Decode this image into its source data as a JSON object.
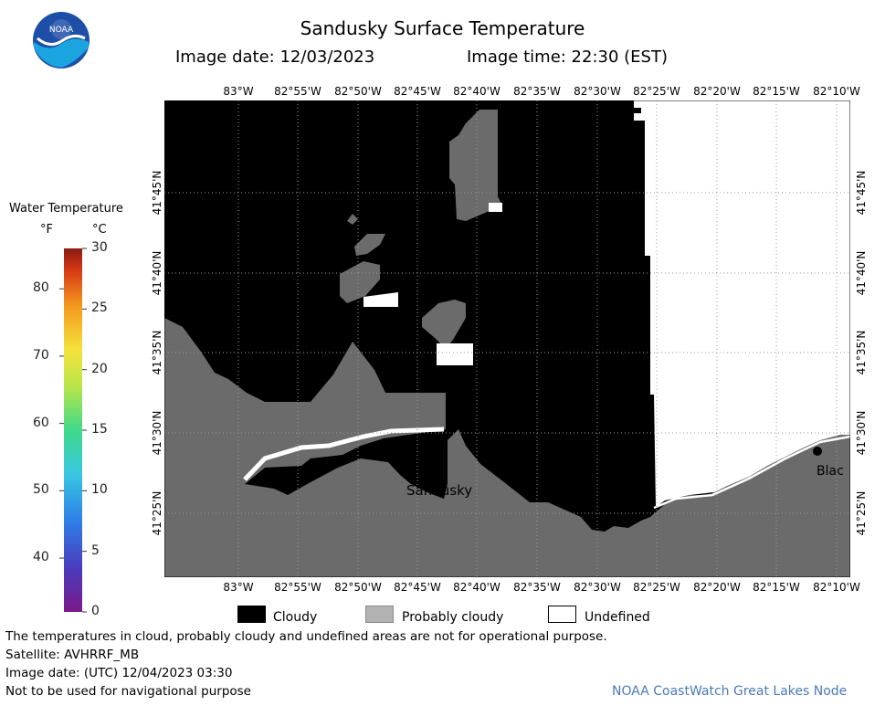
{
  "title": "Sandusky Surface Temperature",
  "image_date_label": "Image date: 12/03/2023",
  "image_time_label": "Image time: 22:30 (EST)",
  "logo_text": "NOAA",
  "colorbar": {
    "title": "Water Temperature",
    "unit_f": "°F",
    "unit_c": "°C",
    "f_ticks": [
      "80",
      "70",
      "60",
      "50",
      "40"
    ],
    "c_ticks": [
      "30",
      "25",
      "20",
      "15",
      "10",
      "5",
      "0"
    ]
  },
  "axes": {
    "lon_ticks": [
      "83°W",
      "82°55'W",
      "82°50'W",
      "82°45'W",
      "82°40'W",
      "82°35'W",
      "82°30'W",
      "82°25'W",
      "82°20'W",
      "82°15'W",
      "82°10'W"
    ],
    "lat_ticks": [
      "41°45'N",
      "41°40'N",
      "41°35'N",
      "41°30'N",
      "41°25'N"
    ]
  },
  "places": {
    "sandusky": "Sandusky",
    "bay_partial": "Blac"
  },
  "legend": {
    "cloudy": "Cloudy",
    "probably_cloudy": "Probably cloudy",
    "undefined": "Undefined"
  },
  "footer": {
    "note": "The temperatures in cloud, probably cloudy and undefined areas are not for operational purpose.",
    "satellite": "Satellite: AVHRRF_MB",
    "utc_date": "Image date: (UTC) 12/04/2023  03:30",
    "nav_warning": "Not to be used for navigational purpose",
    "credit": "NOAA CoastWatch Great Lakes Node"
  },
  "colors": {
    "cloudy": "#000000",
    "probably_cloudy": "#6b6b6b",
    "land": "#6b6b6b",
    "undefined": "#ffffff"
  }
}
